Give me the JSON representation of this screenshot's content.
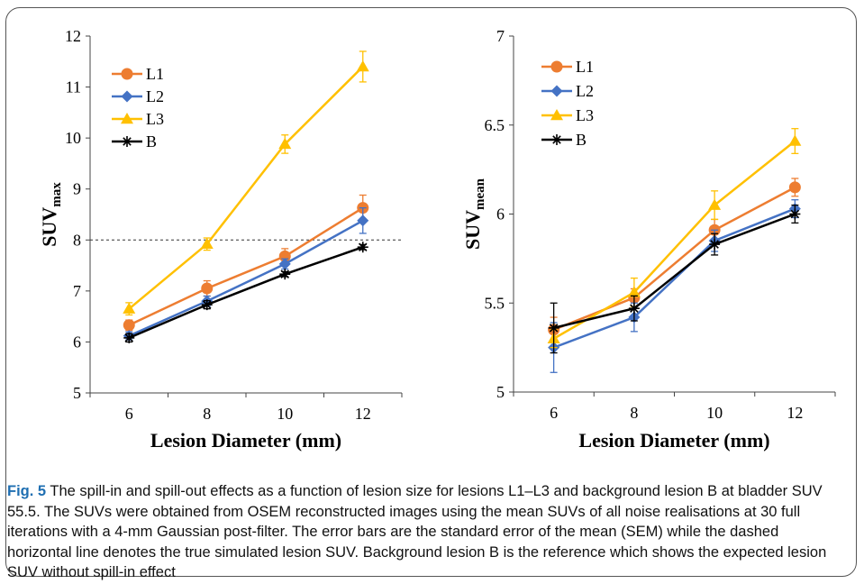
{
  "colors": {
    "L1": "#ED7D31",
    "L2": "#4472C4",
    "L3": "#FFC000",
    "B": "#000000"
  },
  "chart_data": [
    {
      "type": "line",
      "xlabel": "Lesion Diameter (mm)",
      "ylabel_main": "SUV",
      "ylabel_sub": "max",
      "x": [
        6,
        8,
        10,
        12
      ],
      "xlim": [
        5,
        13
      ],
      "ylim": [
        5,
        12
      ],
      "yticks": [
        5,
        6,
        7,
        8,
        9,
        10,
        11,
        12
      ],
      "xticks": [
        6,
        8,
        10,
        12
      ],
      "reference_line": {
        "y": 8,
        "style": "dashed"
      },
      "legend_position": "top-left",
      "series": [
        {
          "name": "L1",
          "marker": "circle",
          "values": [
            6.33,
            7.05,
            7.68,
            8.63
          ],
          "errors": [
            0.1,
            0.15,
            0.15,
            0.25
          ]
        },
        {
          "name": "L2",
          "marker": "diamond",
          "values": [
            6.12,
            6.8,
            7.53,
            8.38
          ],
          "errors": [
            0.08,
            0.1,
            0.1,
            0.25
          ]
        },
        {
          "name": "L3",
          "marker": "triangle",
          "values": [
            6.65,
            7.92,
            9.88,
            11.4
          ],
          "errors": [
            0.12,
            0.12,
            0.18,
            0.3
          ]
        },
        {
          "name": "B",
          "marker": "asterisk",
          "values": [
            6.08,
            6.73,
            7.33,
            7.86
          ],
          "errors": [
            0.08,
            0.08,
            0.05,
            0.05
          ]
        }
      ]
    },
    {
      "type": "line",
      "xlabel": "Lesion Diameter (mm)",
      "ylabel_main": "SUV",
      "ylabel_sub": "mean",
      "x": [
        6,
        8,
        10,
        12
      ],
      "xlim": [
        5,
        13
      ],
      "ylim": [
        5,
        7
      ],
      "yticks": [
        5,
        5.5,
        6,
        6.5,
        7
      ],
      "xticks": [
        6,
        8,
        10,
        12
      ],
      "legend_position": "top-left",
      "series": [
        {
          "name": "L1",
          "marker": "circle",
          "values": [
            5.35,
            5.53,
            5.91,
            6.15
          ],
          "errors": [
            0.07,
            0.05,
            0.06,
            0.05
          ]
        },
        {
          "name": "L2",
          "marker": "diamond",
          "values": [
            5.25,
            5.42,
            5.85,
            6.03
          ],
          "errors": [
            0.14,
            0.08,
            0.06,
            0.05
          ]
        },
        {
          "name": "L3",
          "marker": "triangle",
          "values": [
            5.3,
            5.56,
            6.05,
            6.41
          ],
          "errors": [
            0.05,
            0.08,
            0.08,
            0.07
          ]
        },
        {
          "name": "B",
          "marker": "asterisk",
          "values": [
            5.36,
            5.47,
            5.83,
            6.0
          ],
          "errors": [
            0.14,
            0.07,
            0.06,
            0.05
          ]
        }
      ]
    }
  ],
  "caption": {
    "label": "Fig. 5",
    "text": " The spill-in and spill-out effects as a function of lesion size for lesions L1–L3 and background lesion B at bladder SUV 55.5. The SUVs were obtained from OSEM reconstructed images using the mean SUVs of all noise realisations at 30 full iterations with a 4-mm Gaussian post-filter. The error bars are the standard error of the mean (SEM) while the dashed horizontal line denotes the true simulated lesion SUV. Background lesion B is the reference which shows the expected lesion SUV without spill-in effect"
  }
}
